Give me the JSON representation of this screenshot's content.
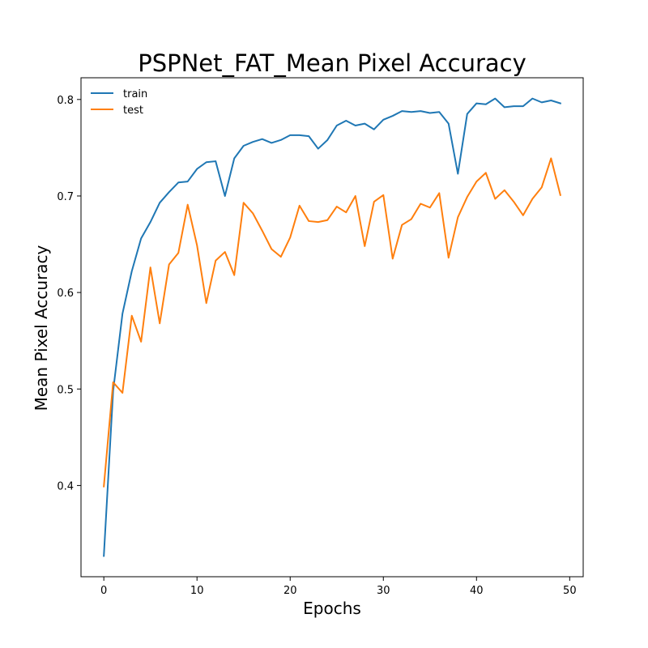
{
  "chart_data": {
    "type": "line",
    "title": "PSPNet_FAT_Mean Pixel Accuracy",
    "xlabel": "Epochs",
    "ylabel": "Mean Pixel Accuracy",
    "xlim": [
      -2.45,
      51.45
    ],
    "ylim": [
      0.3055,
      0.8225
    ],
    "xticks": [
      0,
      10,
      20,
      30,
      40,
      50
    ],
    "yticks": [
      0.4,
      0.5,
      0.6,
      0.7,
      0.8
    ],
    "legend_position": "top-left",
    "grid": false,
    "x": [
      0,
      1,
      2,
      3,
      4,
      5,
      6,
      7,
      8,
      9,
      10,
      11,
      12,
      13,
      14,
      15,
      16,
      17,
      18,
      19,
      20,
      21,
      22,
      23,
      24,
      25,
      26,
      27,
      28,
      29,
      30,
      31,
      32,
      33,
      34,
      35,
      36,
      37,
      38,
      39,
      40,
      41,
      42,
      43,
      44,
      45,
      46,
      47,
      48,
      49
    ],
    "series": [
      {
        "name": "train",
        "color": "#1f77b4",
        "values": [
          0.327,
          0.498,
          0.578,
          0.622,
          0.656,
          0.673,
          0.693,
          0.704,
          0.714,
          0.715,
          0.728,
          0.735,
          0.736,
          0.7,
          0.739,
          0.752,
          0.756,
          0.759,
          0.755,
          0.758,
          0.763,
          0.763,
          0.762,
          0.749,
          0.758,
          0.773,
          0.778,
          0.773,
          0.775,
          0.769,
          0.779,
          0.783,
          0.788,
          0.787,
          0.788,
          0.786,
          0.787,
          0.775,
          0.723,
          0.785,
          0.796,
          0.795,
          0.801,
          0.792,
          0.793,
          0.793,
          0.801,
          0.797,
          0.799,
          0.796
        ]
      },
      {
        "name": "test",
        "color": "#ff7f0e",
        "values": [
          0.399,
          0.507,
          0.496,
          0.576,
          0.549,
          0.626,
          0.568,
          0.629,
          0.641,
          0.691,
          0.649,
          0.589,
          0.633,
          0.642,
          0.618,
          0.693,
          0.682,
          0.664,
          0.645,
          0.637,
          0.657,
          0.69,
          0.674,
          0.673,
          0.675,
          0.689,
          0.683,
          0.7,
          0.648,
          0.694,
          0.701,
          0.635,
          0.67,
          0.676,
          0.692,
          0.688,
          0.703,
          0.636,
          0.678,
          0.699,
          0.715,
          0.724,
          0.697,
          0.706,
          0.694,
          0.68,
          0.697,
          0.709,
          0.739,
          0.701
        ]
      }
    ]
  }
}
